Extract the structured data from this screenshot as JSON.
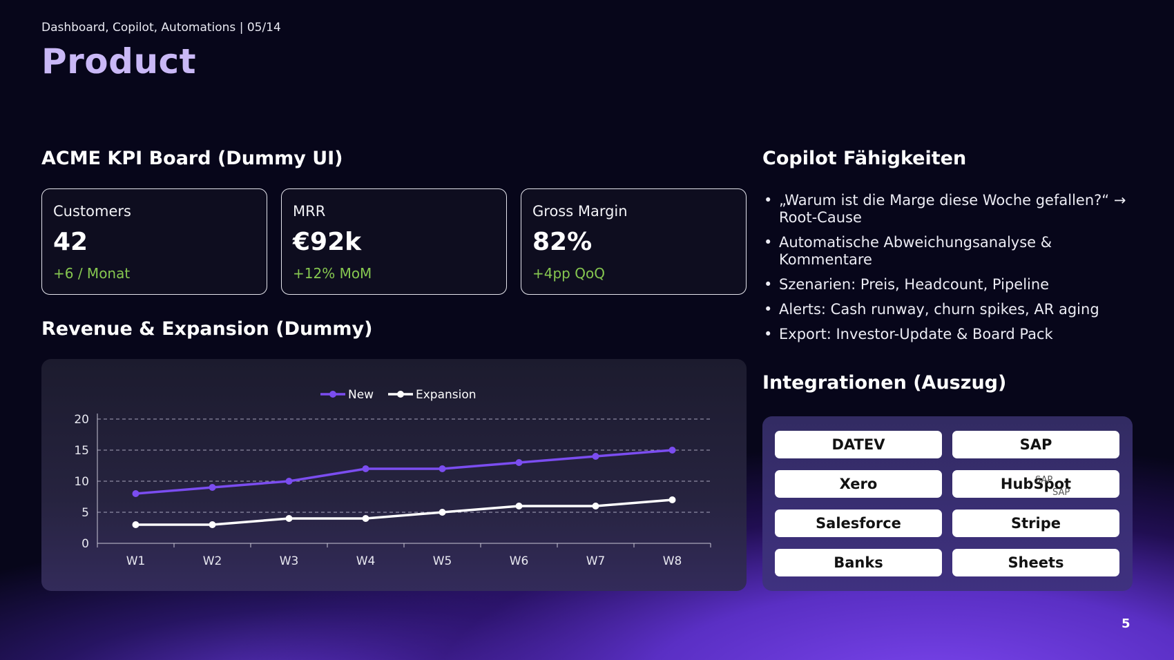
{
  "header": {
    "breadcrumb": "Dashboard, Copilot, Automations  |  05/14",
    "title": "Product"
  },
  "kpi_board": {
    "heading": "ACME KPI Board (Dummy UI)",
    "cards": [
      {
        "label": "Customers",
        "value": "42",
        "delta": "+6 / Monat"
      },
      {
        "label": "MRR",
        "value": "€92k",
        "delta": "+12% MoM"
      },
      {
        "label": "Gross Margin",
        "value": "82%",
        "delta": "+4pp QoQ"
      }
    ],
    "delta_color": "#86c750"
  },
  "revenue": {
    "heading": "Revenue & Expansion (Dummy)"
  },
  "chart_data": {
    "type": "line",
    "categories": [
      "W1",
      "W2",
      "W3",
      "W4",
      "W5",
      "W6",
      "W7",
      "W8"
    ],
    "series": [
      {
        "name": "New",
        "color": "#7b4df0",
        "values": [
          8,
          9,
          10,
          12,
          12,
          13,
          14,
          15
        ]
      },
      {
        "name": "Expansion",
        "color": "#ffffff",
        "values": [
          3,
          3,
          4,
          4,
          5,
          6,
          6,
          7
        ]
      }
    ],
    "yticks": [
      "0",
      "5",
      "10",
      "15",
      "20"
    ],
    "ylim": [
      0,
      20
    ],
    "grid": true,
    "legend": "top-center"
  },
  "copilot": {
    "heading": "Copilot Fähigkeiten",
    "items": [
      "„Warum ist die Marge diese Woche gefallen?“ → Root-Cause",
      "Automatische Abweichungsanalyse & Kommentare",
      "Szenarien: Preis, Headcount, Pipeline",
      "Alerts: Cash runway, churn spikes, AR aging",
      "Export: Investor-Update & Board Pack"
    ]
  },
  "integrations": {
    "heading": "Integrationen (Auszug)",
    "items": [
      "DATEV",
      "SAP",
      "Xero",
      "HubSpot",
      "Salesforce",
      "Stripe",
      "Banks",
      "Sheets"
    ],
    "overlap_labels": [
      "SAP",
      "SAP"
    ]
  },
  "page_number": "5"
}
